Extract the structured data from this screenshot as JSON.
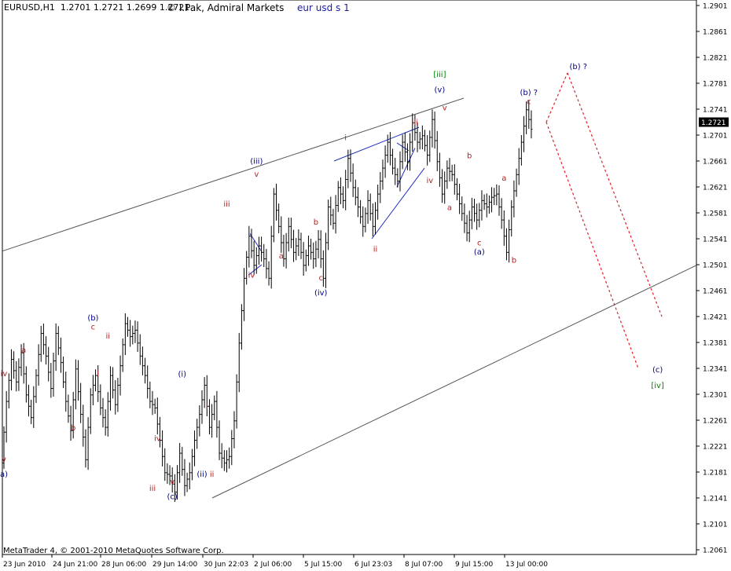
{
  "header": {
    "symbol": "EURUSD,H1",
    "ohlc": "1.2701 1.2721 1.2699 1.2721",
    "author": "© I.Pak, Admiral Markets",
    "chart_name": "eur usd s 1"
  },
  "footer": {
    "copyright": "MetaTrader 4, © 2001-2010 MetaQuotes Software Corp."
  },
  "colors": {
    "background": "#ffffff",
    "bars": "#000000",
    "wave_minor": "#b22222",
    "wave_intermediate": "#000080",
    "wave_primary": "#008000",
    "trendline": "#555555",
    "triangle_lines": "#1f2fbf",
    "projection": "#e0202a",
    "price_tag_bg": "#000000",
    "price_tag_text": "#ffffff"
  },
  "chart_data": {
    "type": "ohlc",
    "timeframe": "H1",
    "ylim": [
      1.2061,
      1.2901
    ],
    "current_price": "1.2721",
    "y_ticks": [
      "1.2901",
      "1.2861",
      "1.2821",
      "1.2781",
      "1.2741",
      "1.2701",
      "1.2661",
      "1.2621",
      "1.2581",
      "1.2541",
      "1.2501",
      "1.2461",
      "1.2421",
      "1.2381",
      "1.2341",
      "1.2301",
      "1.2261",
      "1.2221",
      "1.2181",
      "1.2141",
      "1.2101",
      "1.2061"
    ],
    "x_ticks": [
      "23 Jun 2010",
      "24 Jun 21:00",
      "28 Jun 06:00",
      "29 Jun 14:00",
      "30 Jun 22:03",
      "2 Jul 06:00",
      "5 Jul 15:00",
      "6 Jul 23:03",
      "8 Jul 07:00",
      "9 Jul 15:00",
      "13 Jul 00:00"
    ],
    "price_path": [
      1.2195,
      1.229,
      1.2355,
      1.232,
      1.2365,
      1.23,
      1.2265,
      1.233,
      1.2395,
      1.236,
      1.231,
      1.2395,
      1.235,
      1.229,
      1.2245,
      1.234,
      1.227,
      1.22,
      1.23,
      1.233,
      1.228,
      1.225,
      1.233,
      1.2285,
      1.2345,
      1.241,
      1.239,
      1.24,
      1.236,
      1.233,
      1.229,
      1.228,
      1.223,
      1.218,
      1.2175,
      1.215,
      1.221,
      1.216,
      1.218,
      1.223,
      1.227,
      1.2315,
      1.225,
      1.229,
      1.221,
      1.2195,
      1.2205,
      1.226,
      1.238,
      1.248,
      1.2545,
      1.25,
      1.253,
      1.251,
      1.248,
      1.261,
      1.256,
      1.251,
      1.256,
      1.252,
      1.254,
      1.25,
      1.253,
      1.251,
      1.254,
      1.248,
      1.259,
      1.2565,
      1.262,
      1.26,
      1.2665,
      1.262,
      1.259,
      1.256,
      1.26,
      1.256,
      1.261,
      1.265,
      1.269,
      1.265,
      1.263,
      1.269,
      1.266,
      1.272,
      1.269,
      1.27,
      1.267,
      1.2725,
      1.266,
      1.261,
      1.265,
      1.264,
      1.261,
      1.258,
      1.255,
      1.259,
      1.257,
      1.26,
      1.259,
      1.2605,
      1.261,
      1.257,
      1.252,
      1.259,
      1.264,
      1.269,
      1.274,
      1.271
    ],
    "wave_labels": [
      {
        "text": "iv",
        "date_index": 0,
        "price": 1.2329,
        "group": "minor"
      },
      {
        "text": "v",
        "date_index": 0,
        "price": 1.2197,
        "group": "minor"
      },
      {
        "text": "a)",
        "date_index": 0,
        "price": 1.2174,
        "group": "intermediate"
      },
      {
        "text": "a",
        "date_index": 4,
        "price": 1.2365,
        "group": "minor"
      },
      {
        "text": "b",
        "date_index": 14,
        "price": 1.2245,
        "group": "minor"
      },
      {
        "text": "(b)",
        "date_index": 18,
        "price": 1.2415,
        "group": "intermediate"
      },
      {
        "text": "c",
        "date_index": 18,
        "price": 1.2401,
        "group": "minor"
      },
      {
        "text": "ii",
        "date_index": 21,
        "price": 1.2387,
        "group": "minor"
      },
      {
        "text": "i",
        "date_index": 19,
        "price": 1.233,
        "group": "minor"
      },
      {
        "text": "iv",
        "date_index": 31,
        "price": 1.2229,
        "group": "minor"
      },
      {
        "text": "iii",
        "date_index": 30,
        "price": 1.2152,
        "group": "minor"
      },
      {
        "text": "v",
        "date_index": 34,
        "price": 1.2162,
        "group": "minor"
      },
      {
        "text": "(c)",
        "date_index": 34,
        "price": 1.2139,
        "group": "intermediate"
      },
      {
        "text": "(i)",
        "date_index": 36,
        "price": 1.2328,
        "group": "intermediate"
      },
      {
        "text": "i",
        "date_index": 41,
        "price": 1.2278,
        "group": "minor"
      },
      {
        "text": "(ii)",
        "date_index": 40,
        "price": 1.2174,
        "group": "intermediate"
      },
      {
        "text": "ii",
        "date_index": 42,
        "price": 1.2174,
        "group": "minor"
      },
      {
        "text": "iii",
        "date_index": 45,
        "price": 1.2591,
        "group": "minor"
      },
      {
        "text": "iv",
        "date_index": 50,
        "price": 1.2481,
        "group": "minor"
      },
      {
        "text": "(iii)",
        "date_index": 51,
        "price": 1.2657,
        "group": "intermediate"
      },
      {
        "text": "v",
        "date_index": 51,
        "price": 1.2637,
        "group": "minor"
      },
      {
        "text": "a",
        "date_index": 56,
        "price": 1.2511,
        "group": "minor"
      },
      {
        "text": "b",
        "date_index": 63,
        "price": 1.2563,
        "group": "minor"
      },
      {
        "text": "c",
        "date_index": 64,
        "price": 1.2477,
        "group": "minor"
      },
      {
        "text": "(iv)",
        "date_index": 64,
        "price": 1.2454,
        "group": "intermediate"
      },
      {
        "text": "i",
        "date_index": 69,
        "price": 1.2693,
        "group": "minor"
      },
      {
        "text": "ii",
        "date_index": 75,
        "price": 1.2521,
        "group": "minor"
      },
      {
        "text": "iii",
        "date_index": 83,
        "price": 1.2717,
        "group": "minor"
      },
      {
        "text": "iv",
        "date_index": 86,
        "price": 1.2627,
        "group": "minor"
      },
      {
        "text": "v",
        "date_index": 89,
        "price": 1.2739,
        "group": "minor"
      },
      {
        "text": "[iii]",
        "date_index": 88,
        "price": 1.2791,
        "group": "primary"
      },
      {
        "text": "(v)",
        "date_index": 88,
        "price": 1.2767,
        "group": "intermediate"
      },
      {
        "text": "b",
        "date_index": 94,
        "price": 1.2665,
        "group": "minor"
      },
      {
        "text": "a",
        "date_index": 90,
        "price": 1.2585,
        "group": "minor"
      },
      {
        "text": "c",
        "date_index": 96,
        "price": 1.2531,
        "group": "minor"
      },
      {
        "text": "(a)",
        "date_index": 96,
        "price": 1.2517,
        "group": "intermediate"
      },
      {
        "text": "a",
        "date_index": 101,
        "price": 1.2631,
        "group": "minor"
      },
      {
        "text": "b",
        "date_index": 103,
        "price": 1.2504,
        "group": "minor"
      },
      {
        "text": "(b) ?",
        "date_index": 106,
        "price": 1.2763,
        "group": "intermediate"
      },
      {
        "text": "c",
        "date_index": 106,
        "price": 1.2749,
        "group": "minor"
      },
      {
        "text": "(b) ?",
        "date_index": 116,
        "price": 1.2803,
        "group": "intermediate"
      },
      {
        "text": "(c)",
        "date_index": 132,
        "price": 1.2335,
        "group": "intermediate"
      },
      {
        "text": "[iv]",
        "date_index": 132,
        "price": 1.2311,
        "group": "primary"
      }
    ]
  }
}
